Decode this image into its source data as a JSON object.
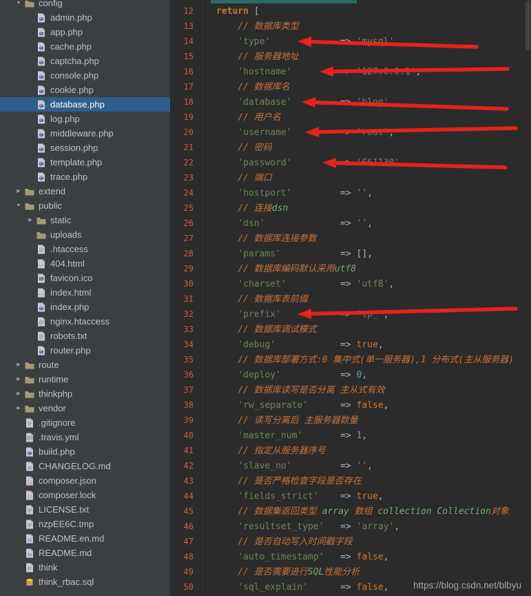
{
  "colors": {
    "editor_bg": "#2b2b2b",
    "sidebar_bg": "#3c3f41",
    "selection_blue": "#2d5e8c",
    "line_number": "#cf5c4c",
    "string_green": "#6a8759",
    "keyword_orange": "#cc7832",
    "comment_orange": "#cb7336",
    "annotation_red": "#e8231a"
  },
  "sidebar": {
    "items": [
      {
        "label": "config",
        "icon": "folder",
        "level": 1,
        "arrow": "down"
      },
      {
        "label": "admin.php",
        "icon": "php",
        "level": 2
      },
      {
        "label": "app.php",
        "icon": "php",
        "level": 2
      },
      {
        "label": "cache.php",
        "icon": "php",
        "level": 2
      },
      {
        "label": "captcha.php",
        "icon": "php",
        "level": 2
      },
      {
        "label": "console.php",
        "icon": "php",
        "level": 2
      },
      {
        "label": "cookie.php",
        "icon": "php",
        "level": 2
      },
      {
        "label": "database.php",
        "icon": "php",
        "level": 2,
        "selected": true
      },
      {
        "label": "log.php",
        "icon": "php",
        "level": 2
      },
      {
        "label": "middleware.php",
        "icon": "php",
        "level": 2
      },
      {
        "label": "session.php",
        "icon": "php",
        "level": 2
      },
      {
        "label": "template.php",
        "icon": "php",
        "level": 2
      },
      {
        "label": "trace.php",
        "icon": "php",
        "level": 2
      },
      {
        "label": "extend",
        "icon": "folder",
        "level": 1,
        "arrow": "right"
      },
      {
        "label": "public",
        "icon": "folder",
        "level": 1,
        "arrow": "down"
      },
      {
        "label": "static",
        "icon": "folder",
        "level": 2,
        "arrow": "right"
      },
      {
        "label": "uploads",
        "icon": "folder",
        "level": 2
      },
      {
        "label": ".htaccess",
        "icon": "text",
        "level": 2
      },
      {
        "label": "404.html",
        "icon": "html",
        "level": 2
      },
      {
        "label": "favicon.ico",
        "icon": "image",
        "level": 2
      },
      {
        "label": "index.html",
        "icon": "html",
        "level": 2
      },
      {
        "label": "index.php",
        "icon": "php",
        "level": 2
      },
      {
        "label": "nginx.htaccess",
        "icon": "text",
        "level": 2
      },
      {
        "label": "robots.txt",
        "icon": "text",
        "level": 2
      },
      {
        "label": "router.php",
        "icon": "php",
        "level": 2
      },
      {
        "label": "route",
        "icon": "folder",
        "level": 1,
        "arrow": "right"
      },
      {
        "label": "runtime",
        "icon": "folder",
        "level": 1,
        "arrow": "right"
      },
      {
        "label": "thinkphp",
        "icon": "folder",
        "level": 1,
        "arrow": "right"
      },
      {
        "label": "vendor",
        "icon": "folder",
        "level": 1,
        "arrow": "right"
      },
      {
        "label": ".gitignore",
        "icon": "text",
        "level": 1
      },
      {
        "label": ".travis.yml",
        "icon": "grid",
        "level": 1
      },
      {
        "label": "build.php",
        "icon": "php",
        "level": 1
      },
      {
        "label": "CHANGELOG.md",
        "icon": "md",
        "level": 1
      },
      {
        "label": "composer.json",
        "icon": "json",
        "level": 1
      },
      {
        "label": "composer.lock",
        "icon": "json",
        "level": 1
      },
      {
        "label": "LICENSE.txt",
        "icon": "text",
        "level": 1
      },
      {
        "label": "nzpEE6C.tmp",
        "icon": "text",
        "level": 1
      },
      {
        "label": "README.en.md",
        "icon": "md",
        "level": 1
      },
      {
        "label": "README.md",
        "icon": "md",
        "level": 1
      },
      {
        "label": "think",
        "icon": "text",
        "level": 1
      },
      {
        "label": "think_rbac.sql",
        "icon": "sql",
        "level": 1
      }
    ]
  },
  "editor": {
    "watermark": "https://blog.csdn.net/blbyu",
    "lines": [
      {
        "num": 12,
        "segs": [
          [
            "kw",
            "return"
          ],
          [
            "pln",
            " ["
          ]
        ]
      },
      {
        "num": 13,
        "segs": [
          [
            "pln",
            "    "
          ],
          [
            "com",
            "// 数据库类型"
          ]
        ]
      },
      {
        "num": 14,
        "segs": [
          [
            "pln",
            "    "
          ],
          [
            "str",
            "'type'"
          ],
          [
            "pln",
            "             => "
          ],
          [
            "str",
            "'mysql'"
          ],
          [
            "pln",
            ","
          ]
        ]
      },
      {
        "num": 15,
        "segs": [
          [
            "pln",
            "    "
          ],
          [
            "com",
            "// 服务器地址"
          ]
        ]
      },
      {
        "num": 16,
        "segs": [
          [
            "pln",
            "    "
          ],
          [
            "str",
            "'hostname'"
          ],
          [
            "pln",
            "         => "
          ],
          [
            "str",
            "'127.0.0.1'"
          ],
          [
            "pln",
            ","
          ]
        ]
      },
      {
        "num": 17,
        "segs": [
          [
            "pln",
            "    "
          ],
          [
            "com",
            "// 数据库名"
          ]
        ]
      },
      {
        "num": 18,
        "segs": [
          [
            "pln",
            "    "
          ],
          [
            "str",
            "'database'"
          ],
          [
            "pln",
            "         => "
          ],
          [
            "str",
            "'blog'"
          ],
          [
            "pln",
            ","
          ]
        ]
      },
      {
        "num": 19,
        "segs": [
          [
            "pln",
            "    "
          ],
          [
            "com",
            "// 用户名"
          ]
        ]
      },
      {
        "num": 20,
        "segs": [
          [
            "pln",
            "    "
          ],
          [
            "str",
            "'username'"
          ],
          [
            "pln",
            "         => "
          ],
          [
            "str",
            "'root'"
          ],
          [
            "pln",
            ","
          ]
        ]
      },
      {
        "num": 21,
        "segs": [
          [
            "pln",
            "    "
          ],
          [
            "com",
            "// 密码"
          ]
        ]
      },
      {
        "num": 22,
        "segs": [
          [
            "pln",
            "    "
          ],
          [
            "str",
            "'password'"
          ],
          [
            "pln",
            "         => "
          ],
          [
            "str",
            "'661130'"
          ],
          [
            "pln",
            ","
          ]
        ]
      },
      {
        "num": 23,
        "segs": [
          [
            "pln",
            "    "
          ],
          [
            "com",
            "// 端口"
          ]
        ]
      },
      {
        "num": 24,
        "segs": [
          [
            "pln",
            "    "
          ],
          [
            "str",
            "'hostport'"
          ],
          [
            "pln",
            "         => "
          ],
          [
            "str",
            "''"
          ],
          [
            "pln",
            ","
          ]
        ]
      },
      {
        "num": 25,
        "segs": [
          [
            "pln",
            "    "
          ],
          [
            "com",
            "// 连接"
          ],
          [
            "comem",
            "dsn"
          ]
        ]
      },
      {
        "num": 26,
        "segs": [
          [
            "pln",
            "    "
          ],
          [
            "str",
            "'dsn'"
          ],
          [
            "pln",
            "              => "
          ],
          [
            "str",
            "''"
          ],
          [
            "pln",
            ","
          ]
        ]
      },
      {
        "num": 27,
        "segs": [
          [
            "pln",
            "    "
          ],
          [
            "com",
            "// 数据库连接参数"
          ]
        ]
      },
      {
        "num": 28,
        "segs": [
          [
            "pln",
            "    "
          ],
          [
            "str",
            "'params'"
          ],
          [
            "pln",
            "           => "
          ],
          [
            "pln",
            "[],"
          ]
        ]
      },
      {
        "num": 29,
        "segs": [
          [
            "pln",
            "    "
          ],
          [
            "com",
            "// 数据库编码默认采用"
          ],
          [
            "comem",
            "utf8"
          ]
        ]
      },
      {
        "num": 30,
        "segs": [
          [
            "pln",
            "    "
          ],
          [
            "str",
            "'charset'"
          ],
          [
            "pln",
            "          => "
          ],
          [
            "str",
            "'utf8'"
          ],
          [
            "pln",
            ","
          ]
        ]
      },
      {
        "num": 31,
        "segs": [
          [
            "pln",
            "    "
          ],
          [
            "com",
            "// 数据库表前缀"
          ]
        ]
      },
      {
        "num": 32,
        "segs": [
          [
            "pln",
            "    "
          ],
          [
            "str",
            "'prefix'"
          ],
          [
            "pln",
            "           => "
          ],
          [
            "str",
            "'tp_'"
          ],
          [
            "pln",
            ","
          ]
        ]
      },
      {
        "num": 33,
        "segs": [
          [
            "pln",
            "    "
          ],
          [
            "com",
            "// 数据库调试模式"
          ]
        ]
      },
      {
        "num": 34,
        "segs": [
          [
            "pln",
            "    "
          ],
          [
            "str",
            "'debug'"
          ],
          [
            "pln",
            "            => "
          ],
          [
            "bool",
            "true"
          ],
          [
            "pln",
            ","
          ]
        ]
      },
      {
        "num": 35,
        "segs": [
          [
            "pln",
            "    "
          ],
          [
            "com",
            "// 数据库部署方式:0 集中式(单一服务器),1 分布式(主从服务器)"
          ]
        ]
      },
      {
        "num": 36,
        "segs": [
          [
            "pln",
            "    "
          ],
          [
            "str",
            "'deploy'"
          ],
          [
            "pln",
            "           => "
          ],
          [
            "num",
            "0"
          ],
          [
            "pln",
            ","
          ]
        ]
      },
      {
        "num": 37,
        "segs": [
          [
            "pln",
            "    "
          ],
          [
            "com",
            "// 数据库读写是否分离 主从式有效"
          ]
        ]
      },
      {
        "num": 38,
        "segs": [
          [
            "pln",
            "    "
          ],
          [
            "str",
            "'rw_separate'"
          ],
          [
            "pln",
            "      => "
          ],
          [
            "bool",
            "false"
          ],
          [
            "pln",
            ","
          ]
        ]
      },
      {
        "num": 39,
        "segs": [
          [
            "pln",
            "    "
          ],
          [
            "com",
            "// 读写分离后 主服务器数量"
          ]
        ]
      },
      {
        "num": 40,
        "segs": [
          [
            "pln",
            "    "
          ],
          [
            "str",
            "'master_num'"
          ],
          [
            "pln",
            "       => "
          ],
          [
            "num",
            "1"
          ],
          [
            "pln",
            ","
          ]
        ]
      },
      {
        "num": 41,
        "segs": [
          [
            "pln",
            "    "
          ],
          [
            "com",
            "// 指定从服务器序号"
          ]
        ]
      },
      {
        "num": 42,
        "segs": [
          [
            "pln",
            "    "
          ],
          [
            "str",
            "'slave_no'"
          ],
          [
            "pln",
            "         => "
          ],
          [
            "str",
            "''"
          ],
          [
            "pln",
            ","
          ]
        ]
      },
      {
        "num": 43,
        "segs": [
          [
            "pln",
            "    "
          ],
          [
            "com",
            "// 是否严格检查字段是否存在"
          ]
        ]
      },
      {
        "num": 44,
        "segs": [
          [
            "pln",
            "    "
          ],
          [
            "str",
            "'fields_strict'"
          ],
          [
            "pln",
            "    => "
          ],
          [
            "bool",
            "true"
          ],
          [
            "pln",
            ","
          ]
        ]
      },
      {
        "num": 45,
        "segs": [
          [
            "pln",
            "    "
          ],
          [
            "com",
            "// 数据集返回类型 "
          ],
          [
            "comem",
            "array"
          ],
          [
            "com",
            " 数组 "
          ],
          [
            "comem",
            "collection"
          ],
          [
            "com",
            " "
          ],
          [
            "comem",
            "Collection"
          ],
          [
            "com",
            "对象"
          ]
        ]
      },
      {
        "num": 46,
        "segs": [
          [
            "pln",
            "    "
          ],
          [
            "str",
            "'resultset_type'"
          ],
          [
            "pln",
            "   => "
          ],
          [
            "str",
            "'array'"
          ],
          [
            "pln",
            ","
          ]
        ]
      },
      {
        "num": 47,
        "segs": [
          [
            "pln",
            "    "
          ],
          [
            "com",
            "// 是否自动写入时间戳字段"
          ]
        ]
      },
      {
        "num": 48,
        "segs": [
          [
            "pln",
            "    "
          ],
          [
            "str",
            "'auto_timestamp'"
          ],
          [
            "pln",
            "   => "
          ],
          [
            "bool",
            "false"
          ],
          [
            "pln",
            ","
          ]
        ]
      },
      {
        "num": 49,
        "segs": [
          [
            "pln",
            "    "
          ],
          [
            "com",
            "// 是否需要进行"
          ],
          [
            "comem",
            "SQL"
          ],
          [
            "com",
            "性能分析"
          ]
        ]
      },
      {
        "num": 50,
        "segs": [
          [
            "pln",
            "    "
          ],
          [
            "str",
            "'sql_explain'"
          ],
          [
            "pln",
            "      => "
          ],
          [
            "bool",
            "false"
          ],
          [
            "pln",
            ","
          ]
        ]
      }
    ]
  },
  "annotations": {
    "arrows": [
      {
        "target_line": 14
      },
      {
        "target_line": 16
      },
      {
        "target_line": 18
      },
      {
        "target_line": 20
      },
      {
        "target_line": 22
      },
      {
        "target_line": 32
      }
    ]
  }
}
